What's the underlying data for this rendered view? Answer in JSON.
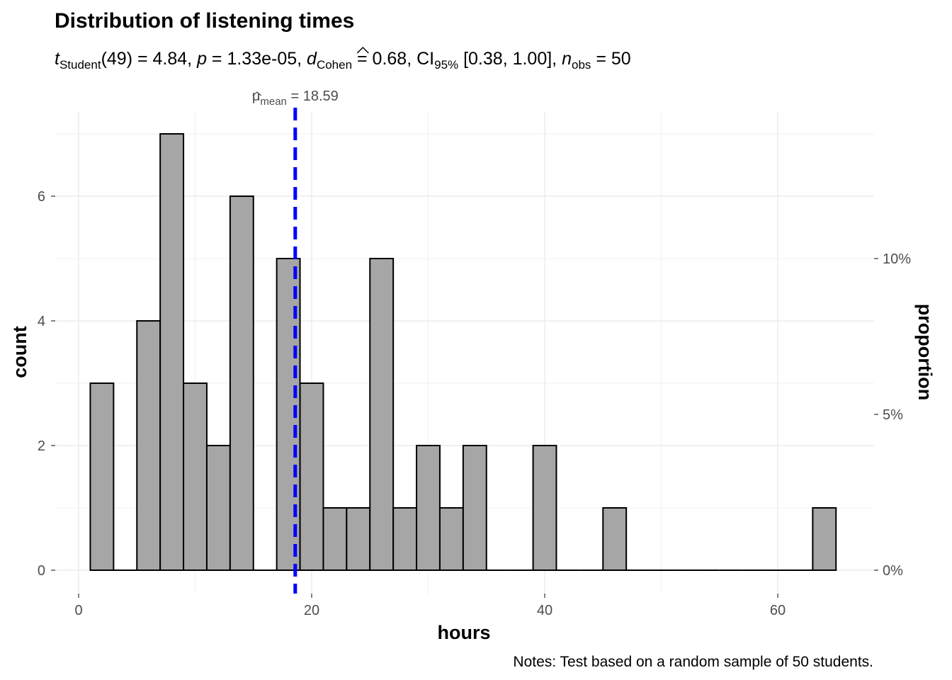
{
  "chart_data": {
    "type": "bar",
    "title": "Distribution of listening times",
    "subtitle": {
      "t_symbol": "t",
      "t_sub": "Student",
      "df_value": "(49) = 4.84, ",
      "p_symbol": "p",
      "p_value": " = 1.33e-05, ",
      "d_symbol": "d",
      "d_sub": "Cohen",
      "d_value": " = 0.68, CI",
      "ci_sub": "95%",
      "ci_value": " [0.38, 1.00], ",
      "n_symbol": "n",
      "n_sub": "obs",
      "n_value": " = 50"
    },
    "xlabel": "hours",
    "ylabel": "count",
    "y2label": "proportion",
    "caption": "Notes: Test based on a random sample of 50 students.",
    "xlim": [
      -1.5,
      68.5
    ],
    "ylim": [
      0,
      7
    ],
    "x_ticks": [
      0,
      20,
      40,
      60
    ],
    "x_tick_labels": [
      "0",
      "20",
      "40",
      "60"
    ],
    "y_ticks": [
      0,
      2,
      4,
      6
    ],
    "y_tick_labels": [
      "0",
      "2",
      "4",
      "6"
    ],
    "y2_ticks": [
      0,
      0.05,
      0.1
    ],
    "y2_tick_labels": [
      "0%",
      "5%",
      "10%"
    ],
    "binwidth": 2,
    "bins": [
      {
        "x": 2,
        "count": 3
      },
      {
        "x": 4,
        "count": 0
      },
      {
        "x": 6,
        "count": 4
      },
      {
        "x": 8,
        "count": 7
      },
      {
        "x": 10,
        "count": 3
      },
      {
        "x": 12,
        "count": 2
      },
      {
        "x": 14,
        "count": 6
      },
      {
        "x": 16,
        "count": 0
      },
      {
        "x": 18,
        "count": 5
      },
      {
        "x": 20,
        "count": 3
      },
      {
        "x": 22,
        "count": 1
      },
      {
        "x": 24,
        "count": 1
      },
      {
        "x": 26,
        "count": 5
      },
      {
        "x": 28,
        "count": 1
      },
      {
        "x": 30,
        "count": 2
      },
      {
        "x": 32,
        "count": 1
      },
      {
        "x": 34,
        "count": 2
      },
      {
        "x": 36,
        "count": 0
      },
      {
        "x": 38,
        "count": 0
      },
      {
        "x": 40,
        "count": 2
      },
      {
        "x": 42,
        "count": 0
      },
      {
        "x": 44,
        "count": 0
      },
      {
        "x": 46,
        "count": 1
      },
      {
        "x": 48,
        "count": 0
      },
      {
        "x": 50,
        "count": 0
      },
      {
        "x": 52,
        "count": 0
      },
      {
        "x": 54,
        "count": 0
      },
      {
        "x": 56,
        "count": 0
      },
      {
        "x": 58,
        "count": 0
      },
      {
        "x": 60,
        "count": 0
      },
      {
        "x": 62,
        "count": 0
      },
      {
        "x": 64,
        "count": 1
      }
    ],
    "mean_line": {
      "value": 18.59,
      "symbol": "μ",
      "sub": "mean",
      "label_value": " = 18.59",
      "color": "#0000ff"
    },
    "bar_fill": "#a6a6a6",
    "bar_stroke": "#000000",
    "grid": true
  }
}
